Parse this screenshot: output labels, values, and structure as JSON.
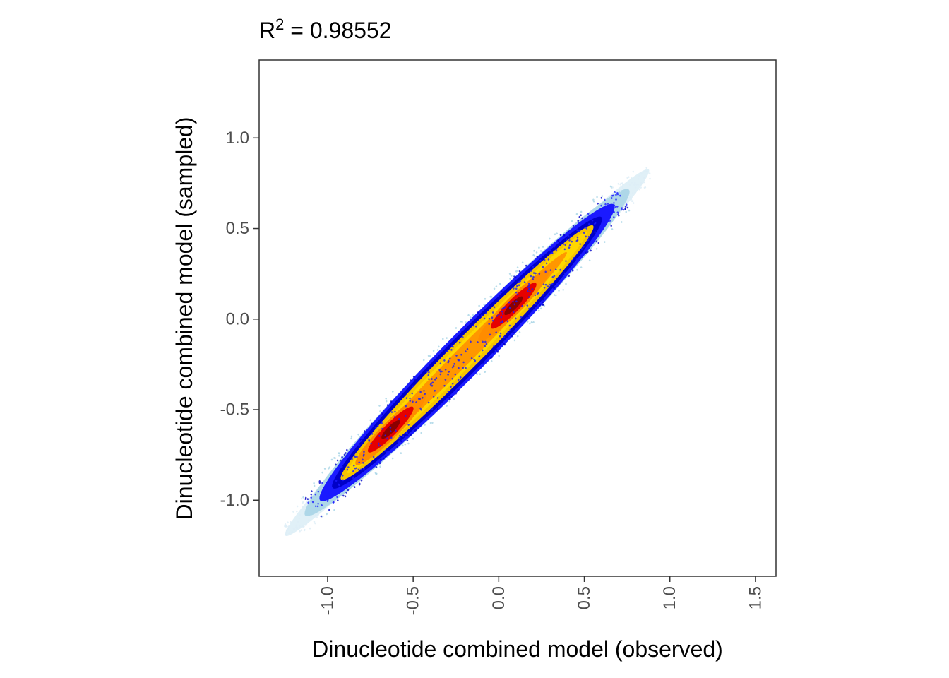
{
  "chart_data": {
    "type": "scatter",
    "title": {
      "prefix": "R",
      "superscript": "2",
      "suffix": " = 0.98552"
    },
    "xlabel": "Dinucleotide combined model (observed)",
    "ylabel": "Dinucleotide combined model (sampled)",
    "xlim": [
      -1.4,
      1.62
    ],
    "ylim": [
      -1.42,
      1.43
    ],
    "xticks": [
      -1.0,
      -0.5,
      0.0,
      0.5,
      1.0,
      1.5
    ],
    "xtick_labels": [
      "-1.0",
      "-0.5",
      "0.0",
      "0.5",
      "1.0",
      "1.5"
    ],
    "yticks": [
      -1.0,
      -0.5,
      0.0,
      0.5,
      1.0
    ],
    "ytick_labels": [
      "-1.0",
      "-0.5",
      "0.0",
      "0.5",
      "1.0"
    ],
    "grid": false,
    "legend": "none",
    "density_colors": [
      "#ddeef6",
      "#a8d4e6",
      "#1a1aff",
      "#0000c8",
      "#f5c400",
      "#ffd700",
      "#ff8c00",
      "#e60000",
      "#8b0000"
    ],
    "r_squared": 0.98552,
    "cloud": {
      "x_range": [
        -1.22,
        0.85
      ],
      "main_modes": [
        {
          "x": -0.62,
          "y": -0.62
        },
        {
          "x": 0.08,
          "y": 0.08
        }
      ]
    }
  }
}
